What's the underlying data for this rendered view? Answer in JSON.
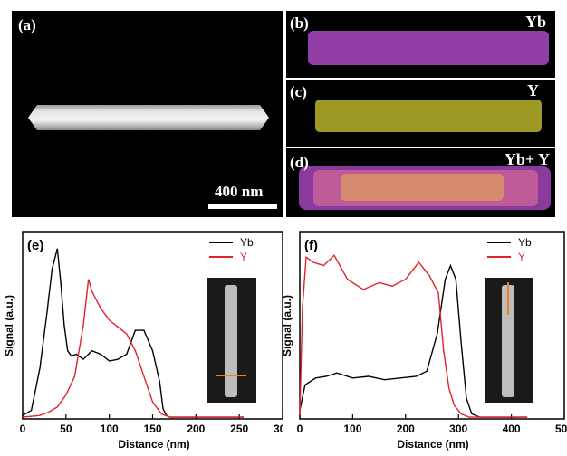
{
  "panels": {
    "a": {
      "label": "(a)",
      "scale_text": "400 nm"
    },
    "b": {
      "label": "(b)",
      "element": "Yb",
      "color": "#b04fc8"
    },
    "c": {
      "label": "(c)",
      "element": "Y",
      "color": "#d8d23a"
    },
    "d": {
      "label": "(d)",
      "element": "Yb+ Y",
      "color": "#c07ad0"
    }
  },
  "chart_data": [
    {
      "type": "line",
      "panel_label": "(e)",
      "xlabel": "Distance (nm)",
      "ylabel": "Signal (a.u.)",
      "xlim": [
        0,
        300
      ],
      "xticks": [
        0,
        50,
        100,
        150,
        200,
        250,
        300
      ],
      "legend": [
        "Yb",
        "Y"
      ],
      "legend_position": "top-right",
      "series": [
        {
          "name": "Yb",
          "color": "#000000",
          "x": [
            0,
            10,
            20,
            28,
            34,
            40,
            44,
            48,
            52,
            56,
            62,
            70,
            80,
            90,
            100,
            110,
            120,
            130,
            140,
            150,
            158,
            162,
            166,
            170,
            180,
            200,
            230,
            255
          ],
          "y": [
            2,
            5,
            30,
            62,
            88,
            100,
            80,
            55,
            40,
            37,
            38,
            35,
            40,
            38,
            34,
            35,
            38,
            52,
            52,
            40,
            22,
            6,
            2,
            1,
            1,
            1,
            1,
            1
          ]
        },
        {
          "name": "Y",
          "color": "#e3232b",
          "x": [
            0,
            20,
            30,
            40,
            50,
            60,
            70,
            76,
            80,
            90,
            100,
            110,
            120,
            130,
            140,
            150,
            160,
            170,
            180,
            200,
            230,
            255
          ],
          "y": [
            1,
            2,
            4,
            7,
            14,
            25,
            55,
            82,
            75,
            65,
            58,
            54,
            50,
            40,
            25,
            10,
            3,
            1,
            1,
            1,
            1,
            1
          ]
        }
      ]
    },
    {
      "type": "line",
      "panel_label": "(f)",
      "xlabel": "Distance (nm)",
      "ylabel": "Signal (a.u.)",
      "xlim": [
        0,
        500
      ],
      "xticks": [
        0,
        100,
        200,
        300,
        400,
        500
      ],
      "legend": [
        "Yb",
        "Y"
      ],
      "legend_position": "top-right",
      "series": [
        {
          "name": "Yb",
          "color": "#000000",
          "x": [
            0,
            10,
            30,
            50,
            70,
            100,
            130,
            160,
            190,
            220,
            240,
            260,
            275,
            285,
            295,
            305,
            315,
            325,
            340,
            380,
            430
          ],
          "y": [
            5,
            20,
            24,
            25,
            27,
            24,
            25,
            23,
            24,
            25,
            28,
            50,
            82,
            90,
            82,
            45,
            12,
            3,
            1,
            1,
            1
          ]
        },
        {
          "name": "Y",
          "color": "#e3232b",
          "x": [
            0,
            5,
            12,
            25,
            45,
            65,
            90,
            120,
            150,
            175,
            200,
            225,
            245,
            262,
            272,
            282,
            292,
            305,
            320,
            350,
            430
          ],
          "y": [
            2,
            65,
            95,
            92,
            90,
            96,
            82,
            76,
            80,
            78,
            82,
            92,
            84,
            74,
            40,
            18,
            8,
            3,
            1,
            1,
            1
          ]
        }
      ]
    }
  ]
}
